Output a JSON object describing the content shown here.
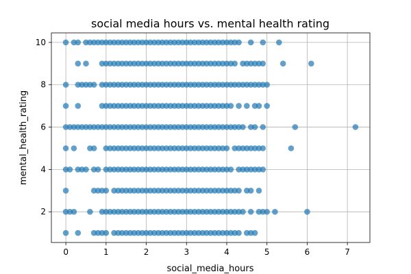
{
  "chart_data": {
    "type": "scatter",
    "title": "social media hours vs. mental health rating",
    "xlabel": "social_media_hours",
    "ylabel": "mental_health_rating",
    "xlim": [
      -0.36,
      7.56
    ],
    "ylim": [
      0.55,
      10.45
    ],
    "xticks": [
      "0",
      "1",
      "2",
      "3",
      "4",
      "5",
      "6",
      "7"
    ],
    "yticks": [
      "2",
      "4",
      "6",
      "8",
      "10"
    ],
    "grid": true,
    "legend": "none",
    "point_color": "#1f77b4",
    "point_alpha": 0.7,
    "points_by_rating": [
      {
        "y": 10,
        "x": [
          0.0,
          0.2,
          0.3,
          0.5,
          0.6,
          0.7,
          0.8,
          0.9,
          1.0,
          1.1,
          1.2,
          1.3,
          1.4,
          1.5,
          1.6,
          1.7,
          1.8,
          1.9,
          2.0,
          2.1,
          2.2,
          2.3,
          2.4,
          2.5,
          2.6,
          2.7,
          2.8,
          2.9,
          3.0,
          3.1,
          3.2,
          3.3,
          3.4,
          3.5,
          3.6,
          3.7,
          3.8,
          3.9,
          4.0,
          4.1,
          4.2,
          4.3,
          4.6,
          4.9,
          5.3
        ]
      },
      {
        "y": 9,
        "x": [
          0.3,
          0.5,
          0.9,
          1.0,
          1.1,
          1.2,
          1.3,
          1.4,
          1.5,
          1.6,
          1.7,
          1.8,
          1.9,
          2.0,
          2.1,
          2.2,
          2.3,
          2.4,
          2.5,
          2.6,
          2.7,
          2.8,
          2.9,
          3.0,
          3.1,
          3.2,
          3.3,
          3.4,
          3.5,
          3.6,
          3.7,
          3.8,
          3.9,
          4.0,
          4.1,
          4.2,
          4.4,
          4.5,
          4.6,
          4.7,
          4.8,
          4.9,
          5.4,
          6.1
        ]
      },
      {
        "y": 8,
        "x": [
          0.0,
          0.3,
          0.4,
          0.5,
          0.6,
          0.7,
          0.9,
          1.0,
          1.1,
          1.2,
          1.3,
          1.4,
          1.5,
          1.6,
          1.7,
          1.8,
          1.9,
          2.0,
          2.1,
          2.2,
          2.3,
          2.4,
          2.5,
          2.6,
          2.7,
          2.8,
          2.9,
          3.0,
          3.1,
          3.2,
          3.3,
          3.4,
          3.5,
          3.6,
          3.7,
          3.8,
          3.9,
          4.0,
          4.1,
          4.2,
          4.3,
          4.4,
          4.5,
          4.6,
          4.7,
          4.8,
          4.9,
          5.0
        ]
      },
      {
        "y": 7,
        "x": [
          0.0,
          0.3,
          0.9,
          1.0,
          1.1,
          1.2,
          1.3,
          1.4,
          1.5,
          1.6,
          1.7,
          1.8,
          1.9,
          2.0,
          2.1,
          2.2,
          2.3,
          2.4,
          2.5,
          2.6,
          2.7,
          2.8,
          2.9,
          3.0,
          3.1,
          3.2,
          3.3,
          3.4,
          3.5,
          3.6,
          3.7,
          3.8,
          3.9,
          4.0,
          4.1,
          4.3,
          4.5,
          4.7,
          4.8,
          5.0
        ]
      },
      {
        "y": 6,
        "x": [
          0.0,
          0.1,
          0.2,
          0.3,
          0.4,
          0.5,
          0.6,
          0.7,
          0.8,
          0.9,
          1.0,
          1.1,
          1.2,
          1.3,
          1.4,
          1.5,
          1.6,
          1.7,
          1.8,
          1.9,
          2.0,
          2.1,
          2.2,
          2.3,
          2.4,
          2.5,
          2.6,
          2.7,
          2.8,
          2.9,
          3.0,
          3.1,
          3.2,
          3.3,
          3.4,
          3.5,
          3.6,
          3.7,
          3.8,
          3.9,
          4.0,
          4.1,
          4.2,
          4.3,
          4.4,
          4.6,
          4.7,
          4.9,
          5.7,
          7.2
        ]
      },
      {
        "y": 5,
        "x": [
          0.0,
          0.2,
          0.6,
          0.7,
          1.0,
          1.1,
          1.2,
          1.3,
          1.4,
          1.5,
          1.6,
          1.7,
          1.8,
          1.9,
          2.0,
          2.1,
          2.2,
          2.3,
          2.4,
          2.5,
          2.6,
          2.7,
          2.8,
          2.9,
          3.0,
          3.1,
          3.2,
          3.3,
          3.4,
          3.5,
          3.6,
          3.7,
          3.8,
          3.9,
          4.0,
          4.2,
          4.3,
          4.4,
          4.5,
          4.6,
          4.7,
          4.8,
          4.9,
          5.6
        ]
      },
      {
        "y": 4,
        "x": [
          0.0,
          0.1,
          0.3,
          0.4,
          0.5,
          0.7,
          0.8,
          1.0,
          1.1,
          1.2,
          1.3,
          1.4,
          1.5,
          1.6,
          1.7,
          1.8,
          1.9,
          2.0,
          2.1,
          2.2,
          2.3,
          2.4,
          2.5,
          2.6,
          2.7,
          2.8,
          2.9,
          3.0,
          3.1,
          3.2,
          3.3,
          3.4,
          3.5,
          3.6,
          3.7,
          3.8,
          3.9,
          4.0,
          4.1,
          4.3,
          4.4,
          4.5,
          4.6,
          4.7,
          4.8,
          4.9
        ]
      },
      {
        "y": 3,
        "x": [
          0.0,
          0.7,
          0.8,
          0.9,
          1.0,
          1.2,
          1.3,
          1.4,
          1.5,
          1.6,
          1.7,
          1.8,
          1.9,
          2.0,
          2.1,
          2.2,
          2.3,
          2.4,
          2.5,
          2.6,
          2.7,
          2.8,
          2.9,
          3.0,
          3.1,
          3.2,
          3.3,
          3.4,
          3.5,
          3.6,
          3.7,
          3.8,
          3.9,
          4.0,
          4.1,
          4.2,
          4.3,
          4.5,
          4.6,
          4.8
        ]
      },
      {
        "y": 2,
        "x": [
          0.0,
          0.1,
          0.2,
          0.6,
          0.9,
          1.0,
          1.1,
          1.2,
          1.3,
          1.4,
          1.5,
          1.6,
          1.7,
          1.8,
          1.9,
          2.0,
          2.1,
          2.2,
          2.3,
          2.4,
          2.5,
          2.6,
          2.7,
          2.8,
          2.9,
          3.0,
          3.1,
          3.2,
          3.3,
          3.4,
          3.5,
          3.6,
          3.7,
          3.8,
          3.9,
          4.0,
          4.1,
          4.2,
          4.3,
          4.4,
          4.6,
          4.8,
          4.9,
          5.0,
          5.2,
          6.0
        ]
      },
      {
        "y": 1,
        "x": [
          0.0,
          0.3,
          0.7,
          0.8,
          0.9,
          1.0,
          1.2,
          1.3,
          1.4,
          1.5,
          1.6,
          1.7,
          1.8,
          1.9,
          2.0,
          2.1,
          2.2,
          2.3,
          2.4,
          2.5,
          2.6,
          2.7,
          2.8,
          2.9,
          3.0,
          3.1,
          3.2,
          3.3,
          3.4,
          3.5,
          3.6,
          3.7,
          3.8,
          3.9,
          4.0,
          4.1,
          4.2,
          4.3,
          4.5,
          4.6,
          4.7
        ]
      }
    ]
  }
}
